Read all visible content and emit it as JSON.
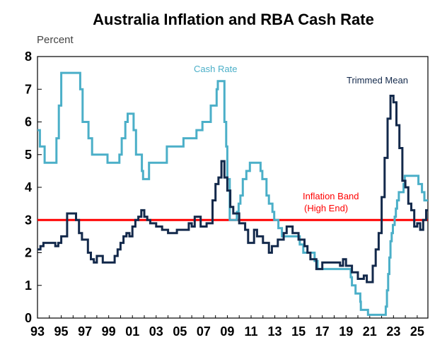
{
  "chart_data": {
    "type": "line",
    "title": "Australia Inflation and RBA Cash Rate",
    "ylabel": "Percent",
    "xlabel": "",
    "ylim": [
      0,
      8
    ],
    "xlim": [
      1993,
      2025.9
    ],
    "yticks": [
      "0",
      "1",
      "2",
      "3",
      "4",
      "5",
      "6",
      "7",
      "8"
    ],
    "xticks": [
      "93",
      "95",
      "97",
      "99",
      "01",
      "03",
      "05",
      "07",
      "09",
      "11",
      "13",
      "15",
      "17",
      "19",
      "21",
      "23",
      "25"
    ],
    "grid": false,
    "legend": "none",
    "series": [
      {
        "name": "Cash Rate",
        "color": "#4bafc8",
        "step": true,
        "points": [
          [
            1993.0,
            5.75
          ],
          [
            1993.2,
            5.25
          ],
          [
            1993.6,
            4.75
          ],
          [
            1994.6,
            5.5
          ],
          [
            1994.8,
            6.5
          ],
          [
            1995.0,
            7.5
          ],
          [
            1996.6,
            7.0
          ],
          [
            1996.8,
            6.0
          ],
          [
            1997.3,
            5.5
          ],
          [
            1997.6,
            5.0
          ],
          [
            1998.9,
            4.75
          ],
          [
            1999.9,
            5.0
          ],
          [
            2000.1,
            5.5
          ],
          [
            2000.4,
            6.0
          ],
          [
            2000.6,
            6.25
          ],
          [
            2001.1,
            5.75
          ],
          [
            2001.3,
            5.0
          ],
          [
            2001.8,
            4.5
          ],
          [
            2001.9,
            4.25
          ],
          [
            2002.4,
            4.75
          ],
          [
            2003.9,
            5.25
          ],
          [
            2005.3,
            5.5
          ],
          [
            2006.4,
            5.75
          ],
          [
            2006.9,
            6.0
          ],
          [
            2007.6,
            6.5
          ],
          [
            2008.1,
            7.0
          ],
          [
            2008.2,
            7.25
          ],
          [
            2008.75,
            6.0
          ],
          [
            2008.9,
            5.25
          ],
          [
            2009.0,
            4.25
          ],
          [
            2009.2,
            3.0
          ],
          [
            2009.8,
            3.25
          ],
          [
            2009.95,
            3.5
          ],
          [
            2010.1,
            3.75
          ],
          [
            2010.3,
            4.25
          ],
          [
            2010.6,
            4.5
          ],
          [
            2010.9,
            4.75
          ],
          [
            2011.8,
            4.5
          ],
          [
            2011.95,
            4.25
          ],
          [
            2012.3,
            3.75
          ],
          [
            2012.5,
            3.5
          ],
          [
            2012.8,
            3.25
          ],
          [
            2012.95,
            3.0
          ],
          [
            2013.3,
            2.75
          ],
          [
            2013.6,
            2.5
          ],
          [
            2015.1,
            2.25
          ],
          [
            2015.4,
            2.0
          ],
          [
            2016.35,
            1.75
          ],
          [
            2016.6,
            1.5
          ],
          [
            2019.4,
            1.25
          ],
          [
            2019.5,
            1.0
          ],
          [
            2019.8,
            0.75
          ],
          [
            2020.2,
            0.5
          ],
          [
            2020.25,
            0.25
          ],
          [
            2020.85,
            0.1
          ],
          [
            2022.35,
            0.35
          ],
          [
            2022.45,
            0.85
          ],
          [
            2022.55,
            1.35
          ],
          [
            2022.65,
            1.85
          ],
          [
            2022.75,
            2.35
          ],
          [
            2022.85,
            2.6
          ],
          [
            2022.95,
            2.85
          ],
          [
            2023.1,
            3.1
          ],
          [
            2023.2,
            3.35
          ],
          [
            2023.3,
            3.6
          ],
          [
            2023.45,
            3.85
          ],
          [
            2023.85,
            4.1
          ],
          [
            2023.95,
            4.35
          ],
          [
            2025.1,
            4.1
          ],
          [
            2025.4,
            3.85
          ],
          [
            2025.6,
            3.6
          ],
          [
            2025.9,
            3.6
          ]
        ]
      },
      {
        "name": "Trimmed Mean",
        "color": "#13294b",
        "step": true,
        "points": [
          [
            1993.0,
            2.1
          ],
          [
            1993.25,
            2.2
          ],
          [
            1993.5,
            2.3
          ],
          [
            1994.5,
            2.2
          ],
          [
            1994.75,
            2.3
          ],
          [
            1995.0,
            2.5
          ],
          [
            1995.5,
            3.2
          ],
          [
            1996.25,
            3.0
          ],
          [
            1996.5,
            2.6
          ],
          [
            1996.75,
            2.4
          ],
          [
            1997.25,
            2.0
          ],
          [
            1997.5,
            1.8
          ],
          [
            1997.75,
            1.7
          ],
          [
            1998.0,
            1.9
          ],
          [
            1998.5,
            1.7
          ],
          [
            1999.5,
            1.9
          ],
          [
            1999.75,
            2.1
          ],
          [
            2000.0,
            2.3
          ],
          [
            2000.25,
            2.5
          ],
          [
            2000.5,
            2.6
          ],
          [
            2000.75,
            2.5
          ],
          [
            2001.0,
            2.8
          ],
          [
            2001.25,
            3.0
          ],
          [
            2001.5,
            3.1
          ],
          [
            2001.75,
            3.3
          ],
          [
            2002.0,
            3.1
          ],
          [
            2002.25,
            3.0
          ],
          [
            2002.5,
            2.9
          ],
          [
            2003.0,
            2.8
          ],
          [
            2003.5,
            2.7
          ],
          [
            2004.0,
            2.6
          ],
          [
            2004.75,
            2.7
          ],
          [
            2005.75,
            2.9
          ],
          [
            2006.0,
            2.8
          ],
          [
            2006.25,
            3.1
          ],
          [
            2006.75,
            2.8
          ],
          [
            2007.25,
            2.9
          ],
          [
            2007.75,
            3.6
          ],
          [
            2008.0,
            4.1
          ],
          [
            2008.25,
            4.3
          ],
          [
            2008.5,
            4.8
          ],
          [
            2008.75,
            4.3
          ],
          [
            2009.0,
            3.9
          ],
          [
            2009.25,
            3.4
          ],
          [
            2009.5,
            3.2
          ],
          [
            2010.0,
            2.9
          ],
          [
            2010.5,
            2.7
          ],
          [
            2010.75,
            2.3
          ],
          [
            2011.25,
            2.7
          ],
          [
            2011.5,
            2.5
          ],
          [
            2012.0,
            2.3
          ],
          [
            2012.5,
            2.0
          ],
          [
            2012.75,
            2.2
          ],
          [
            2013.25,
            2.4
          ],
          [
            2013.75,
            2.6
          ],
          [
            2014.0,
            2.8
          ],
          [
            2014.5,
            2.6
          ],
          [
            2015.0,
            2.4
          ],
          [
            2015.5,
            2.2
          ],
          [
            2015.75,
            2.0
          ],
          [
            2016.0,
            1.8
          ],
          [
            2016.5,
            1.5
          ],
          [
            2017.0,
            1.7
          ],
          [
            2018.5,
            1.6
          ],
          [
            2018.75,
            1.8
          ],
          [
            2019.0,
            1.6
          ],
          [
            2019.5,
            1.4
          ],
          [
            2020.0,
            1.2
          ],
          [
            2020.5,
            1.3
          ],
          [
            2020.75,
            1.1
          ],
          [
            2021.25,
            1.6
          ],
          [
            2021.5,
            2.1
          ],
          [
            2021.75,
            2.6
          ],
          [
            2022.0,
            3.7
          ],
          [
            2022.25,
            4.9
          ],
          [
            2022.5,
            6.1
          ],
          [
            2022.75,
            6.8
          ],
          [
            2023.0,
            6.6
          ],
          [
            2023.25,
            5.9
          ],
          [
            2023.5,
            5.2
          ],
          [
            2023.75,
            4.2
          ],
          [
            2024.0,
            4.0
          ],
          [
            2024.25,
            3.5
          ],
          [
            2024.5,
            3.3
          ],
          [
            2024.75,
            2.8
          ],
          [
            2025.0,
            2.9
          ],
          [
            2025.25,
            2.7
          ],
          [
            2025.5,
            3.0
          ],
          [
            2025.75,
            3.3
          ],
          [
            2025.9,
            3.3
          ]
        ]
      }
    ],
    "reference_lines": [
      {
        "label": "Inflation Band (High End)",
        "label_lines": [
          "Inflation Band",
          "(High End)"
        ],
        "y": 3,
        "color": "#ff0000"
      }
    ],
    "annotations": [
      {
        "text": "Cash Rate",
        "color": "#4bafc8"
      },
      {
        "text": "Trimmed Mean",
        "color": "#13294b"
      }
    ]
  }
}
